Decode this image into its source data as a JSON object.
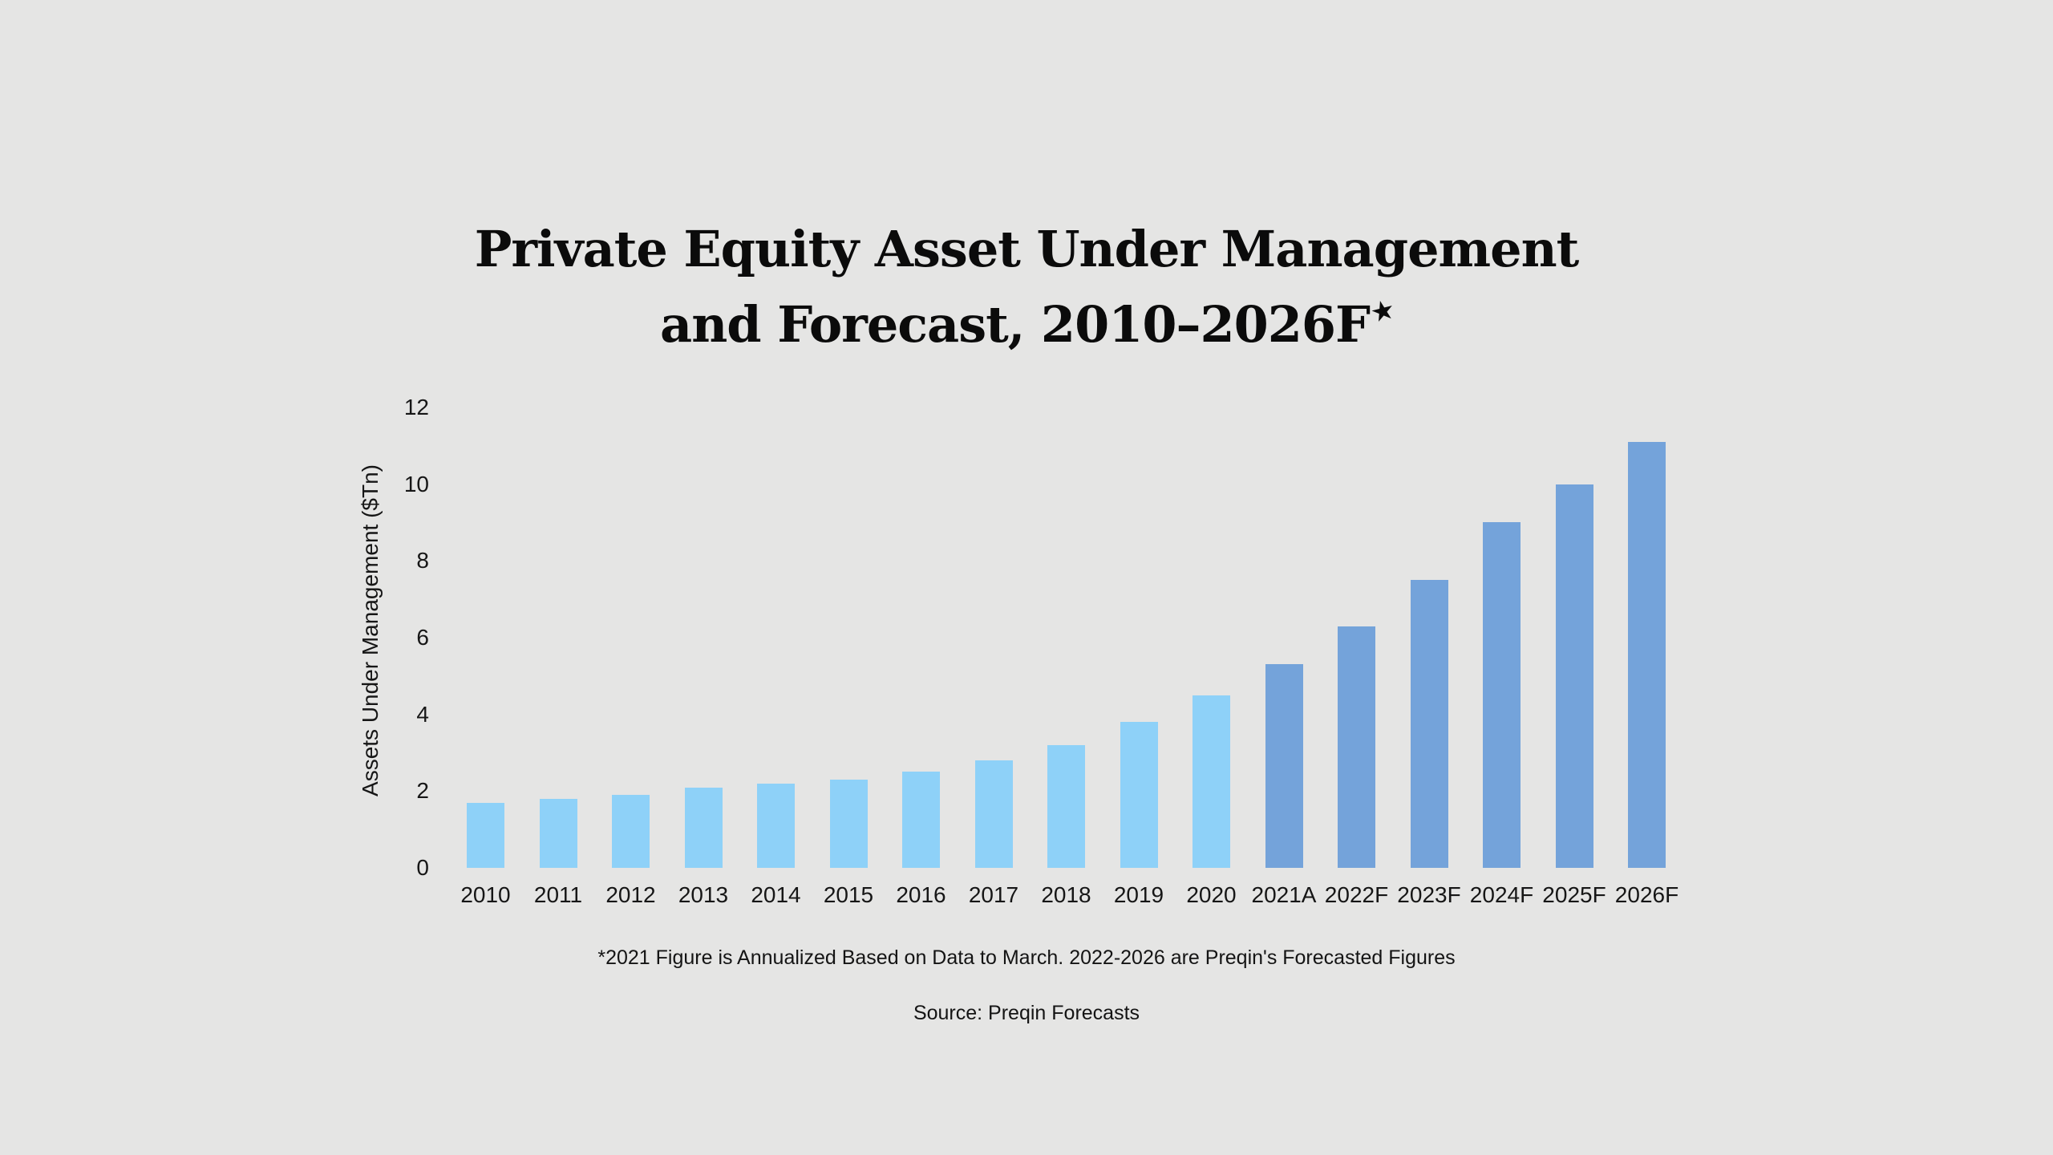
{
  "page": {
    "background_color": "#e5e5e4",
    "text_color": "#111111"
  },
  "chart_data": {
    "type": "bar",
    "title_line1": "Private Equity Asset Under Management",
    "title_line2": "and Forecast, 2010–2026F",
    "title_note_symbol": "★",
    "title": "Private Equity Asset Under Management and Forecast, 2010–2026F*",
    "xlabel": "",
    "ylabel": "Assets Under Management ($Tn)",
    "ylim": [
      0,
      12
    ],
    "yticks": [
      0,
      2,
      4,
      6,
      8,
      10,
      12
    ],
    "grid": false,
    "legend_position": "none",
    "categories": [
      "2010",
      "2011",
      "2012",
      "2013",
      "2014",
      "2015",
      "2016",
      "2017",
      "2018",
      "2019",
      "2020",
      "2021A",
      "2022F",
      "2023F",
      "2024F",
      "2025F",
      "2026F"
    ],
    "values": [
      1.7,
      1.8,
      1.9,
      2.1,
      2.2,
      2.3,
      2.5,
      2.8,
      3.2,
      3.8,
      4.5,
      5.3,
      6.3,
      7.5,
      9.0,
      10.0,
      11.1
    ],
    "colors": {
      "historical_bar": "#8ed1f8",
      "forecast_bar": "#74a3da",
      "historical_count": 11
    },
    "footnote": "*2021 Figure is Annualized Based on Data to March. 2022-2026 are Preqin's Forecasted Figures",
    "source": "Source: Preqin Forecasts"
  }
}
